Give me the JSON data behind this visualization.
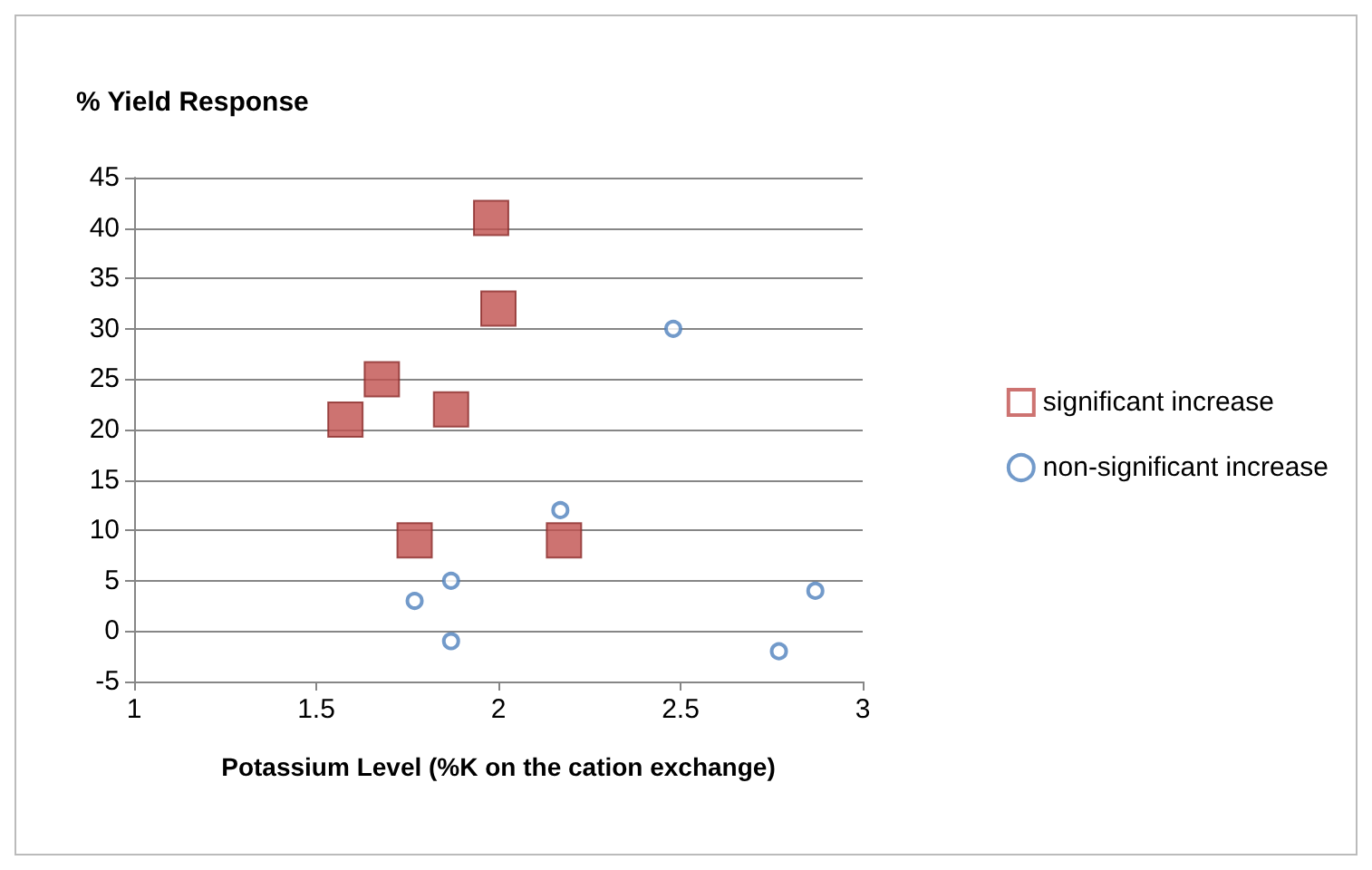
{
  "chart_data": {
    "type": "scatter",
    "title": "% Yield Response",
    "xlabel": "Potassium Level (%K on the cation exchange)",
    "xlim": [
      1,
      3
    ],
    "xticks": [
      1,
      1.5,
      2,
      2.5,
      3
    ],
    "ylim": [
      -5,
      45
    ],
    "yticks": [
      -5,
      0,
      5,
      10,
      15,
      20,
      25,
      30,
      35,
      40,
      45
    ],
    "grid": "y",
    "legend": "right",
    "series": [
      {
        "name": "significant increase",
        "color": "#c0504d",
        "marker": "square",
        "x": [
          1.98,
          2.0,
          1.68,
          1.58,
          1.87,
          1.77,
          2.18
        ],
        "values": [
          41,
          32,
          25,
          21,
          22,
          9,
          9
        ]
      },
      {
        "name": "non-significant increase",
        "color": "#4f81bd",
        "marker": "circle",
        "x": [
          2.48,
          2.17,
          1.87,
          1.77,
          1.87,
          2.77,
          2.87
        ],
        "values": [
          30,
          12,
          5,
          3,
          -1,
          -2,
          4
        ]
      }
    ]
  }
}
